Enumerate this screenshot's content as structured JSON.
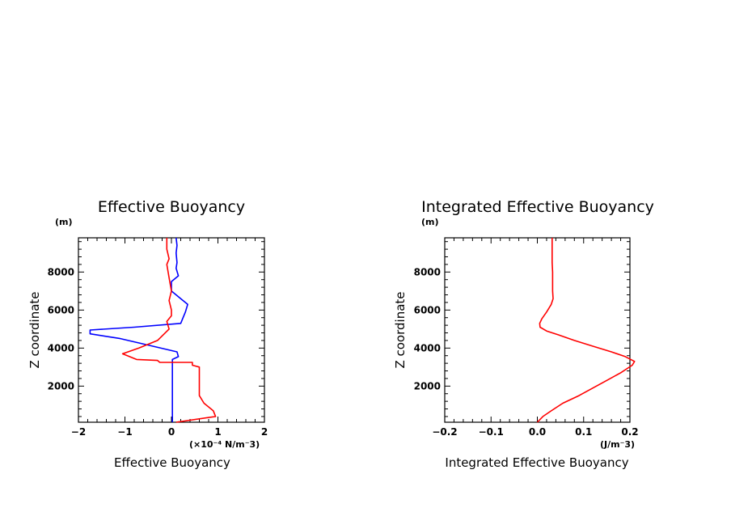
{
  "chart_data": [
    {
      "type": "line",
      "title": "Effective Buoyancy",
      "xlabel": "Effective Buoyancy",
      "ylabel": "Z coordinate",
      "x_unit": "(×10⁻⁴ N/m⁻3)",
      "y_unit": "(m)",
      "xlim": [
        -2,
        2
      ],
      "ylim": [
        100,
        9800
      ],
      "x_ticks": [
        -2,
        -1,
        0,
        1,
        2
      ],
      "x_tick_labels": [
        "−2",
        "−1",
        "0",
        "1",
        "2"
      ],
      "y_ticks": [
        2000,
        4000,
        6000,
        8000
      ],
      "y_tick_labels": [
        "2000",
        "4000",
        "6000",
        "8000"
      ],
      "series": [
        {
          "color": "#0000ff",
          "points": [
            [
              0.02,
              100
            ],
            [
              0.02,
              1000
            ],
            [
              0.02,
              2000
            ],
            [
              0.02,
              3000
            ],
            [
              0.02,
              3400
            ],
            [
              0.15,
              3550
            ],
            [
              0.12,
              3800
            ],
            [
              -0.4,
              4100
            ],
            [
              -1.1,
              4500
            ],
            [
              -1.75,
              4750
            ],
            [
              -1.75,
              4950
            ],
            [
              -0.8,
              5100
            ],
            [
              0.2,
              5300
            ],
            [
              0.25,
              5600
            ],
            [
              0.3,
              5900
            ],
            [
              0.35,
              6300
            ],
            [
              0.2,
              6600
            ],
            [
              0.0,
              7000
            ],
            [
              0.0,
              7500
            ],
            [
              0.15,
              7800
            ],
            [
              0.1,
              8200
            ],
            [
              0.12,
              8500
            ],
            [
              0.1,
              9000
            ],
            [
              0.12,
              9400
            ],
            [
              0.1,
              9800
            ]
          ]
        },
        {
          "color": "#ff0000",
          "points": [
            [
              0.1,
              100
            ],
            [
              0.95,
              400
            ],
            [
              0.9,
              700
            ],
            [
              0.7,
              1100
            ],
            [
              0.6,
              1500
            ],
            [
              0.6,
              2000
            ],
            [
              0.6,
              3000
            ],
            [
              0.45,
              3100
            ],
            [
              0.45,
              3250
            ],
            [
              -0.25,
              3250
            ],
            [
              -0.3,
              3350
            ],
            [
              -0.75,
              3400
            ],
            [
              -1.05,
              3700
            ],
            [
              -0.7,
              4000
            ],
            [
              -0.3,
              4400
            ],
            [
              -0.05,
              5000
            ],
            [
              -0.1,
              5400
            ],
            [
              0.0,
              5700
            ],
            [
              0.0,
              6000
            ],
            [
              -0.05,
              6500
            ],
            [
              0.0,
              7000
            ],
            [
              -0.05,
              7700
            ],
            [
              -0.1,
              8400
            ],
            [
              -0.05,
              8700
            ],
            [
              -0.1,
              9200
            ],
            [
              -0.1,
              9800
            ]
          ]
        }
      ]
    },
    {
      "type": "line",
      "title": "Integrated Effective Buoyancy",
      "xlabel": "Integrated Effective Buoyancy",
      "ylabel": "Z coordinate",
      "x_unit": "(J/m⁻3)",
      "y_unit": "(m)",
      "xlim": [
        -0.2,
        0.2
      ],
      "ylim": [
        100,
        9800
      ],
      "x_ticks": [
        -0.2,
        -0.1,
        0.0,
        0.1,
        0.2
      ],
      "x_tick_labels": [
        "−0.2",
        "−0.1",
        "0.0",
        "0.1",
        "0.2"
      ],
      "y_ticks": [
        2000,
        4000,
        6000,
        8000
      ],
      "y_tick_labels": [
        "2000",
        "4000",
        "6000",
        "8000"
      ],
      "series": [
        {
          "color": "#ff0000",
          "points": [
            [
              0.0,
              100
            ],
            [
              0.012,
              400
            ],
            [
              0.03,
              700
            ],
            [
              0.055,
              1100
            ],
            [
              0.09,
              1500
            ],
            [
              0.12,
              1900
            ],
            [
              0.15,
              2300
            ],
            [
              0.18,
              2700
            ],
            [
              0.205,
              3100
            ],
            [
              0.21,
              3300
            ],
            [
              0.19,
              3550
            ],
            [
              0.16,
              3800
            ],
            [
              0.12,
              4100
            ],
            [
              0.08,
              4400
            ],
            [
              0.045,
              4700
            ],
            [
              0.02,
              4900
            ],
            [
              0.006,
              5100
            ],
            [
              0.005,
              5300
            ],
            [
              0.01,
              5550
            ],
            [
              0.02,
              5900
            ],
            [
              0.03,
              6300
            ],
            [
              0.034,
              6600
            ],
            [
              0.033,
              7000
            ],
            [
              0.033,
              7500
            ],
            [
              0.033,
              8000
            ],
            [
              0.032,
              8500
            ],
            [
              0.032,
              9000
            ],
            [
              0.032,
              9500
            ],
            [
              0.032,
              9800
            ]
          ]
        }
      ]
    }
  ]
}
